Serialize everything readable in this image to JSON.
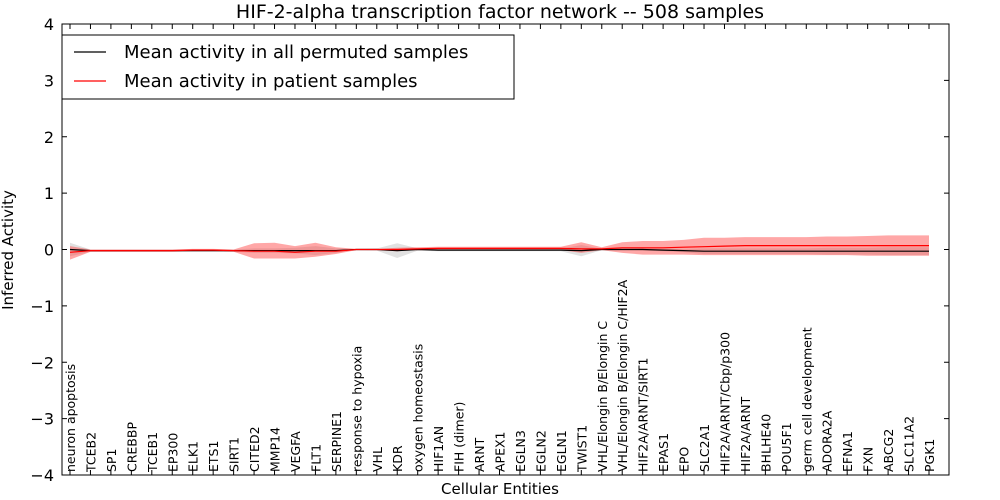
{
  "chart_data": {
    "type": "line",
    "title": "HIF-2-alpha transcription factor network -- 508 samples",
    "xlabel": "Cellular Entities",
    "ylabel": "Inferred Activity",
    "ylim": [
      -4,
      4
    ],
    "yticks": [
      "4",
      "3",
      "2",
      "1",
      "0",
      "−1",
      "−2",
      "−3",
      "−4"
    ],
    "yticks_values": [
      4,
      3,
      2,
      1,
      0,
      -1,
      -2,
      -3,
      -4
    ],
    "legend_position": "top-left",
    "categories": [
      "neuron apoptosis",
      "TCEB2",
      "SP1",
      "CREBBP",
      "TCEB1",
      "EP300",
      "ELK1",
      "ETS1",
      "SIRT1",
      "CITED2",
      "MMP14",
      "VEGFA",
      "FLT1",
      "SERPINE1",
      "response to hypoxia",
      "VHL",
      "KDR",
      "oxygen homeostasis",
      "HIF1AN",
      "FIH (dimer)",
      "ARNT",
      "APEX1",
      "EGLN3",
      "EGLN2",
      "EGLN1",
      "TWIST1",
      "VHL/Elongin B/Elongin C",
      "VHL/Elongin B/Elongin C/HIF2A",
      "HIF2A/ARNT/SIRT1",
      "EPAS1",
      "EPO",
      "SLC2A1",
      "HIF2A/ARNT/Cbp/p300",
      "HIF2A/ARNT",
      "BHLHE40",
      "POU5F1",
      "germ cell development",
      "ADORA2A",
      "EFNA1",
      "FXN",
      "ABCG2",
      "SLC11A2",
      "PGK1"
    ],
    "series": [
      {
        "name": "Mean activity in all permuted samples",
        "color": "#000000",
        "band_color": "#c8c8c8",
        "values": [
          0.0,
          -0.02,
          -0.02,
          -0.02,
          -0.02,
          -0.02,
          -0.02,
          -0.02,
          -0.02,
          -0.02,
          -0.02,
          -0.02,
          -0.02,
          -0.02,
          0.0,
          0.0,
          -0.02,
          0.0,
          -0.01,
          -0.01,
          -0.01,
          -0.01,
          -0.01,
          -0.01,
          -0.01,
          -0.02,
          0.0,
          0.0,
          0.0,
          -0.01,
          -0.02,
          -0.03,
          -0.03,
          -0.03,
          -0.03,
          -0.03,
          -0.03,
          -0.03,
          -0.03,
          -0.03,
          -0.03,
          -0.03,
          -0.03
        ],
        "lower": [
          -0.12,
          -0.04,
          -0.04,
          -0.04,
          -0.04,
          -0.04,
          -0.04,
          -0.04,
          -0.04,
          -0.06,
          -0.06,
          -0.07,
          -0.1,
          -0.06,
          -0.01,
          -0.02,
          -0.15,
          -0.02,
          -0.03,
          -0.03,
          -0.03,
          -0.03,
          -0.03,
          -0.03,
          -0.03,
          -0.12,
          -0.01,
          -0.01,
          -0.02,
          -0.03,
          -0.05,
          -0.08,
          -0.08,
          -0.08,
          -0.08,
          -0.08,
          -0.08,
          -0.09,
          -0.09,
          -0.09,
          -0.1,
          -0.1,
          -0.1
        ],
        "upper": [
          0.12,
          0.0,
          0.0,
          0.0,
          0.0,
          0.0,
          0.0,
          0.0,
          0.0,
          0.02,
          0.02,
          0.03,
          0.06,
          0.02,
          0.01,
          0.02,
          0.11,
          0.02,
          0.01,
          0.01,
          0.01,
          0.01,
          0.01,
          0.01,
          0.01,
          0.08,
          0.01,
          0.01,
          0.02,
          0.01,
          0.01,
          0.02,
          0.02,
          0.02,
          0.02,
          0.02,
          0.02,
          0.03,
          0.03,
          0.03,
          0.04,
          0.04,
          0.04
        ]
      },
      {
        "name": "Mean activity in patient samples",
        "color": "#ff0000",
        "band_color": "#ff3c3c",
        "values": [
          -0.05,
          -0.02,
          -0.02,
          -0.02,
          -0.02,
          -0.02,
          -0.01,
          -0.01,
          -0.02,
          -0.03,
          -0.03,
          -0.05,
          -0.03,
          -0.03,
          0.0,
          0.0,
          0.0,
          0.01,
          0.02,
          0.02,
          0.02,
          0.02,
          0.02,
          0.02,
          0.02,
          0.01,
          0.01,
          0.03,
          0.03,
          0.03,
          0.04,
          0.05,
          0.06,
          0.07,
          0.07,
          0.07,
          0.07,
          0.07,
          0.07,
          0.07,
          0.07,
          0.07,
          0.07
        ],
        "lower": [
          -0.18,
          -0.04,
          -0.04,
          -0.04,
          -0.04,
          -0.04,
          -0.03,
          -0.03,
          -0.04,
          -0.16,
          -0.16,
          -0.16,
          -0.13,
          -0.08,
          -0.01,
          -0.01,
          -0.03,
          -0.01,
          -0.01,
          -0.01,
          -0.01,
          -0.01,
          -0.01,
          -0.01,
          -0.01,
          -0.06,
          -0.01,
          -0.06,
          -0.09,
          -0.09,
          -0.09,
          -0.1,
          -0.1,
          -0.1,
          -0.1,
          -0.1,
          -0.1,
          -0.1,
          -0.1,
          -0.11,
          -0.11,
          -0.11,
          -0.11
        ],
        "upper": [
          0.06,
          0.0,
          0.0,
          0.0,
          0.0,
          0.0,
          0.01,
          0.01,
          0.0,
          0.11,
          0.12,
          0.06,
          0.12,
          0.04,
          0.01,
          0.01,
          0.03,
          0.04,
          0.05,
          0.05,
          0.05,
          0.05,
          0.05,
          0.05,
          0.05,
          0.13,
          0.04,
          0.13,
          0.15,
          0.15,
          0.17,
          0.21,
          0.21,
          0.22,
          0.22,
          0.22,
          0.22,
          0.23,
          0.23,
          0.24,
          0.25,
          0.25,
          0.25
        ]
      }
    ]
  }
}
